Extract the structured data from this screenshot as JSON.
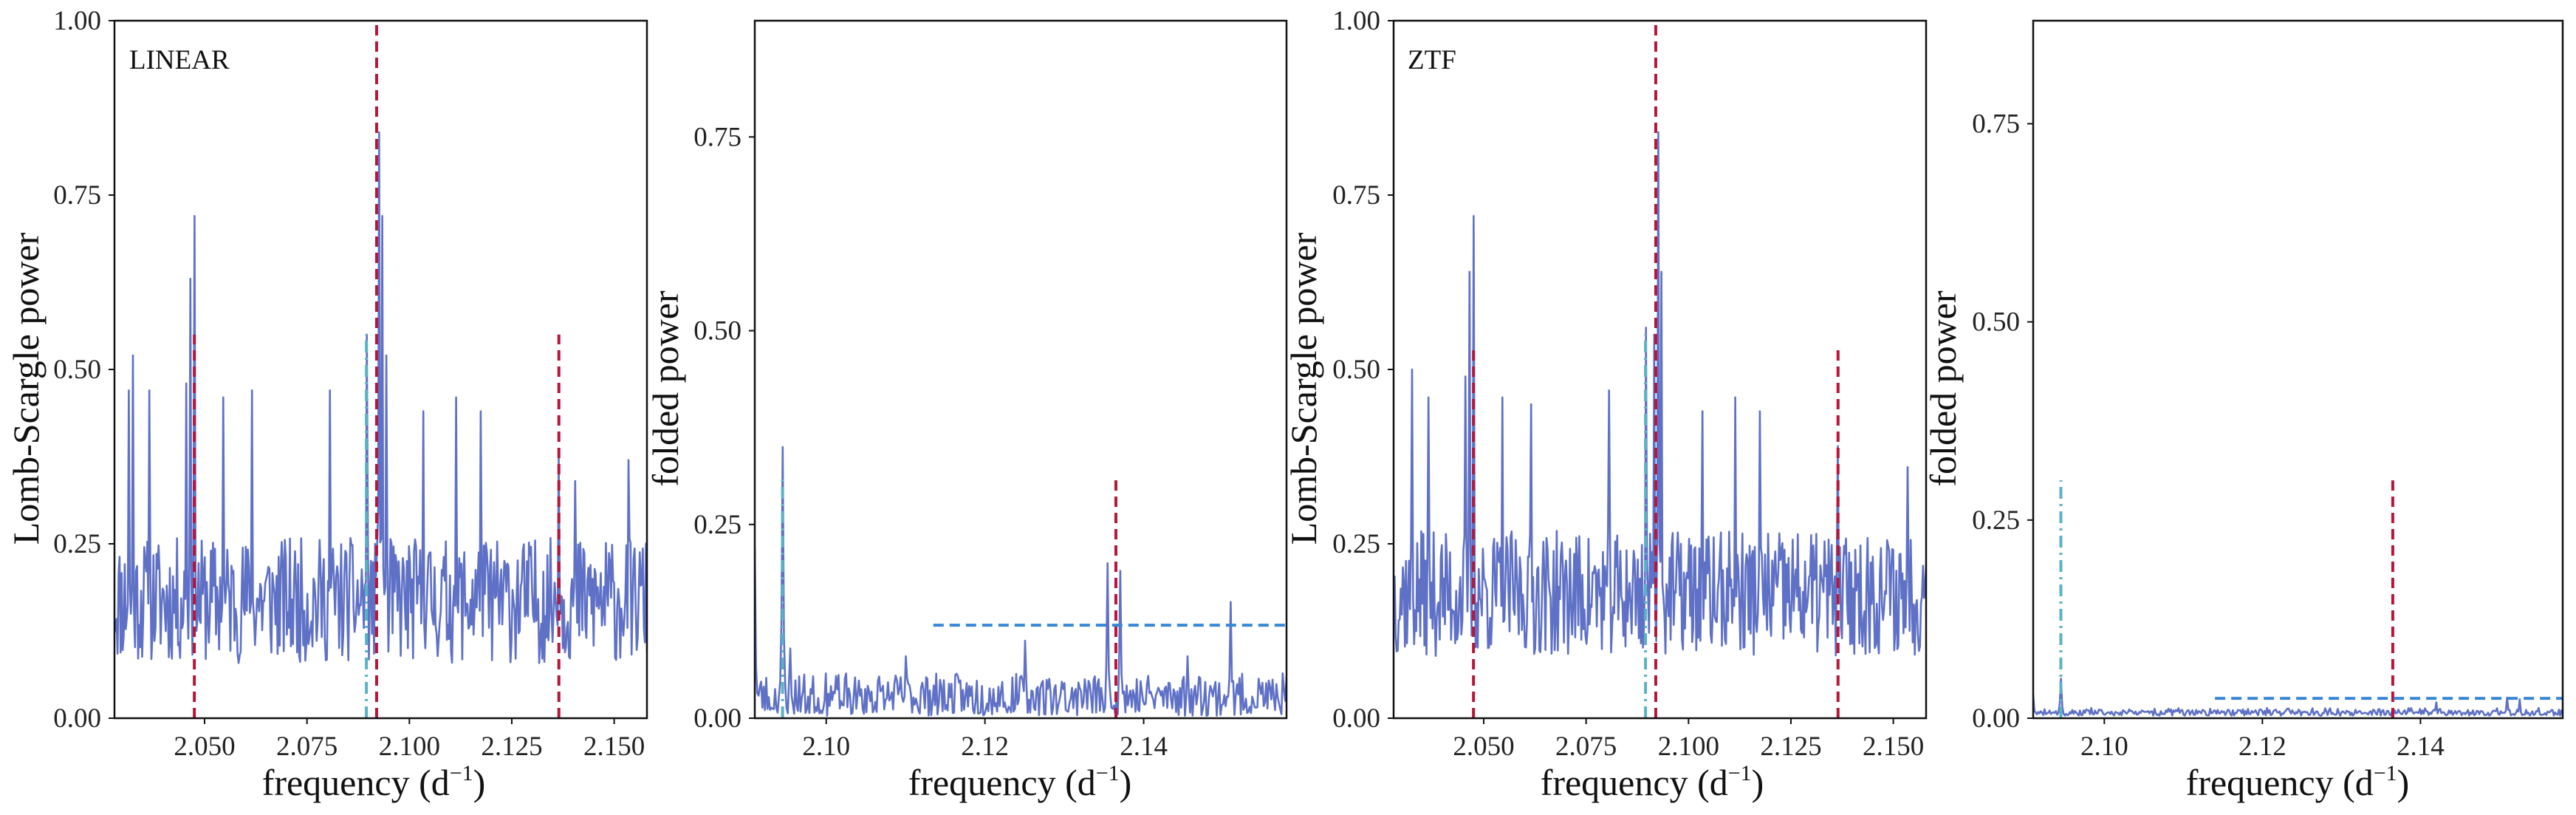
{
  "colors": {
    "spectrum": "#5f71c6",
    "peak_line": "#b5173a",
    "alias_line": "#5ab3c5",
    "threshold_line": "#3a86d6",
    "frame": "#111111"
  },
  "chart_data": [
    {
      "type": "line",
      "panel_label": "LINEAR",
      "ylabel": "Lomb-Scargle power",
      "xlabel": "frequency (d",
      "xlabel_sup": "−1",
      "xlabel_end": ")",
      "xlim": [
        2.028,
        2.158
      ],
      "ylim": [
        0.0,
        1.0
      ],
      "xticks": [
        2.05,
        2.075,
        2.1,
        2.125,
        2.15
      ],
      "xtick_labels": [
        "2.050",
        "2.075",
        "2.100",
        "2.125",
        "2.150"
      ],
      "yticks": [
        0.0,
        0.25,
        0.5,
        0.75,
        1.0
      ],
      "ytick_labels": [
        "0.00",
        "0.25",
        "0.50",
        "0.75",
        "1.00"
      ],
      "spectrum": {
        "x_range": [
          2.028,
          2.158
        ],
        "n_points": 520,
        "baseline": 0.16,
        "noise_amplitude": 0.09,
        "seed": 11,
        "peaks": [
          {
            "x": 2.0475,
            "y": 0.72
          },
          {
            "x": 2.0465,
            "y": 0.63
          },
          {
            "x": 2.0455,
            "y": 0.48
          },
          {
            "x": 2.0925,
            "y": 0.84
          },
          {
            "x": 2.0935,
            "y": 0.72
          },
          {
            "x": 2.0895,
            "y": 0.55
          },
          {
            "x": 2.0945,
            "y": 0.52
          },
          {
            "x": 2.0325,
            "y": 0.52
          },
          {
            "x": 2.0315,
            "y": 0.47
          },
          {
            "x": 2.0365,
            "y": 0.47
          },
          {
            "x": 2.0545,
            "y": 0.46
          },
          {
            "x": 2.0615,
            "y": 0.47
          },
          {
            "x": 2.0805,
            "y": 0.47
          },
          {
            "x": 2.1035,
            "y": 0.44
          },
          {
            "x": 2.1115,
            "y": 0.46
          },
          {
            "x": 2.1175,
            "y": 0.44
          },
          {
            "x": 2.1365,
            "y": 0.38
          },
          {
            "x": 2.1405,
            "y": 0.34
          },
          {
            "x": 2.1535,
            "y": 0.37
          }
        ]
      },
      "vlines": [
        {
          "x": 2.0475,
          "y0": 0.0,
          "y1": 0.55,
          "style": "dashed",
          "color": "peak_line"
        },
        {
          "x": 2.092,
          "y0": 0.0,
          "y1": 1.0,
          "style": "dashed",
          "color": "peak_line"
        },
        {
          "x": 2.1365,
          "y0": 0.0,
          "y1": 0.55,
          "style": "dashed",
          "color": "peak_line"
        },
        {
          "x": 2.0895,
          "y0": 0.0,
          "y1": 0.55,
          "style": "dashdot",
          "color": "alias_line"
        }
      ]
    },
    {
      "type": "line",
      "panel_label": "",
      "ylabel": "folded power",
      "xlabel": "frequency (d",
      "xlabel_sup": "−1",
      "xlabel_end": ")",
      "xlim": [
        2.091,
        2.158
      ],
      "ylim": [
        0.0,
        0.9
      ],
      "xticks": [
        2.1,
        2.12,
        2.14
      ],
      "xtick_labels": [
        "2.10",
        "2.12",
        "2.14"
      ],
      "yticks": [
        0.0,
        0.25,
        0.5,
        0.75
      ],
      "ytick_labels": [
        "0.00",
        "0.25",
        "0.50",
        "0.75"
      ],
      "spectrum": {
        "x_range": [
          2.091,
          2.158
        ],
        "n_points": 420,
        "baseline": 0.025,
        "noise_amplitude": 0.03,
        "seed": 23,
        "peaks": [
          {
            "x": 2.091,
            "y": 0.22
          },
          {
            "x": 2.0945,
            "y": 0.35
          },
          {
            "x": 2.0955,
            "y": 0.09
          },
          {
            "x": 2.1355,
            "y": 0.2
          },
          {
            "x": 2.137,
            "y": 0.19
          },
          {
            "x": 2.151,
            "y": 0.15
          },
          {
            "x": 2.125,
            "y": 0.1
          },
          {
            "x": 2.11,
            "y": 0.08
          },
          {
            "x": 2.1455,
            "y": 0.08
          }
        ]
      },
      "vlines": [
        {
          "x": 2.0945,
          "y0": 0.0,
          "y1": 0.31,
          "style": "dashdot",
          "color": "alias_line"
        },
        {
          "x": 2.1365,
          "y0": 0.0,
          "y1": 0.31,
          "style": "dashed",
          "color": "peak_line"
        }
      ],
      "hlines": [
        {
          "y": 0.12,
          "x0": 2.1135,
          "x1": 2.158,
          "style": "dashed",
          "color": "threshold_line"
        }
      ]
    },
    {
      "type": "line",
      "panel_label": "ZTF",
      "ylabel": "Lomb-Scargle power",
      "xlabel": "frequency (d",
      "xlabel_sup": "−1",
      "xlabel_end": ")",
      "xlim": [
        2.028,
        2.158
      ],
      "ylim": [
        0.0,
        1.0
      ],
      "xticks": [
        2.05,
        2.075,
        2.1,
        2.125,
        2.15
      ],
      "xtick_labels": [
        "2.050",
        "2.075",
        "2.100",
        "2.125",
        "2.150"
      ],
      "yticks": [
        0.0,
        0.25,
        0.5,
        0.75,
        1.0
      ],
      "ytick_labels": [
        "0.00",
        "0.25",
        "0.50",
        "0.75",
        "1.00"
      ],
      "spectrum": {
        "x_range": [
          2.028,
          2.158
        ],
        "n_points": 520,
        "baseline": 0.17,
        "noise_amplitude": 0.09,
        "seed": 37,
        "peaks": [
          {
            "x": 2.0475,
            "y": 0.72
          },
          {
            "x": 2.0465,
            "y": 0.64
          },
          {
            "x": 2.0455,
            "y": 0.49
          },
          {
            "x": 2.0925,
            "y": 0.84
          },
          {
            "x": 2.0935,
            "y": 0.64
          },
          {
            "x": 2.0895,
            "y": 0.56
          },
          {
            "x": 2.0915,
            "y": 0.55
          },
          {
            "x": 2.0325,
            "y": 0.5
          },
          {
            "x": 2.0365,
            "y": 0.46
          },
          {
            "x": 2.0545,
            "y": 0.46
          },
          {
            "x": 2.0615,
            "y": 0.45
          },
          {
            "x": 2.0805,
            "y": 0.47
          },
          {
            "x": 2.1035,
            "y": 0.44
          },
          {
            "x": 2.1115,
            "y": 0.46
          },
          {
            "x": 2.1175,
            "y": 0.44
          },
          {
            "x": 2.1365,
            "y": 0.39
          },
          {
            "x": 2.1535,
            "y": 0.36
          }
        ]
      },
      "vlines": [
        {
          "x": 2.0475,
          "y0": 0.0,
          "y1": 0.53,
          "style": "dashed",
          "color": "peak_line"
        },
        {
          "x": 2.092,
          "y0": 0.0,
          "y1": 1.0,
          "style": "dashed",
          "color": "peak_line"
        },
        {
          "x": 2.1365,
          "y0": 0.0,
          "y1": 0.53,
          "style": "dashed",
          "color": "peak_line"
        },
        {
          "x": 2.0895,
          "y0": 0.0,
          "y1": 0.55,
          "style": "dashdot",
          "color": "alias_line"
        }
      ]
    },
    {
      "type": "line",
      "panel_label": "",
      "ylabel": "folded power",
      "xlabel": "frequency (d",
      "xlabel_sup": "−1",
      "xlabel_end": ")",
      "xlim": [
        2.091,
        2.158
      ],
      "ylim": [
        0.0,
        0.88
      ],
      "xticks": [
        2.1,
        2.12,
        2.14
      ],
      "xtick_labels": [
        "2.10",
        "2.12",
        "2.14"
      ],
      "yticks": [
        0.0,
        0.25,
        0.5,
        0.75
      ],
      "ytick_labels": [
        "0.00",
        "0.25",
        "0.50",
        "0.75"
      ],
      "spectrum": {
        "x_range": [
          2.091,
          2.158
        ],
        "n_points": 420,
        "baseline": 0.004,
        "noise_amplitude": 0.006,
        "seed": 53,
        "peaks": [
          {
            "x": 2.091,
            "y": 0.03
          },
          {
            "x": 2.0945,
            "y": 0.05
          },
          {
            "x": 2.151,
            "y": 0.026
          },
          {
            "x": 2.1525,
            "y": 0.024
          },
          {
            "x": 2.142,
            "y": 0.02
          }
        ]
      },
      "vlines": [
        {
          "x": 2.0945,
          "y0": 0.0,
          "y1": 0.3,
          "style": "dashdot",
          "color": "alias_line"
        },
        {
          "x": 2.1365,
          "y0": 0.0,
          "y1": 0.3,
          "style": "dashed",
          "color": "peak_line"
        }
      ],
      "hlines": [
        {
          "y": 0.025,
          "x0": 2.114,
          "x1": 2.158,
          "style": "dashed",
          "color": "threshold_line"
        }
      ]
    }
  ]
}
